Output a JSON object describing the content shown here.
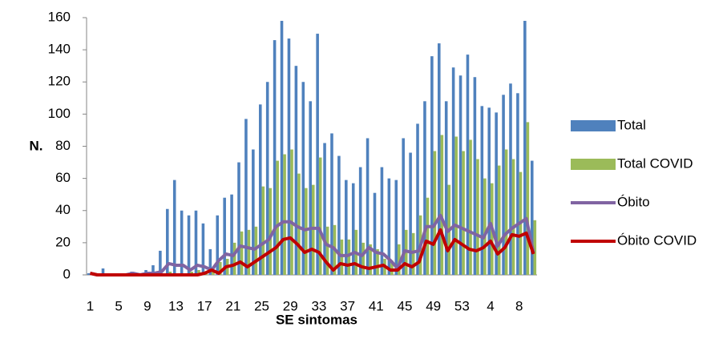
{
  "chart_data": {
    "type": "bar",
    "y_label": "N.",
    "x_label": "SE sintomas",
    "categories": [
      "1",
      null,
      null,
      null,
      "5",
      null,
      null,
      null,
      "9",
      null,
      null,
      null,
      "13",
      null,
      null,
      null,
      "17",
      null,
      null,
      null,
      "21",
      null,
      null,
      null,
      "25",
      null,
      null,
      null,
      "29",
      null,
      null,
      null,
      "33",
      null,
      null,
      null,
      "37",
      null,
      null,
      null,
      "41",
      null,
      null,
      null,
      "45",
      null,
      null,
      null,
      "49",
      null,
      null,
      null,
      "53",
      null,
      null,
      null,
      "4",
      null,
      null,
      null,
      "8",
      null,
      null
    ],
    "series": [
      {
        "name": "Total",
        "type": "bar",
        "color": "#4f81bd",
        "values": [
          1,
          0,
          4,
          0,
          0,
          0,
          2,
          1,
          3,
          6,
          15,
          41,
          59,
          40,
          37,
          40,
          32,
          16,
          37,
          48,
          50,
          70,
          97,
          78,
          106,
          120,
          146,
          158,
          147,
          130,
          120,
          108,
          150,
          82,
          88,
          74,
          59,
          57,
          67,
          85,
          51,
          67,
          60,
          59,
          85,
          76,
          94,
          108,
          136,
          144,
          108,
          129,
          124,
          137,
          123,
          105,
          104,
          101,
          112,
          119,
          113,
          158,
          71
        ]
      },
      {
        "name": "Total COVID",
        "type": "bar",
        "color": "#9bbb59",
        "values": [
          0,
          0,
          0,
          0,
          0,
          0,
          0,
          0,
          0,
          0,
          1,
          2,
          1,
          1,
          2,
          3,
          2,
          5,
          8,
          10,
          20,
          27,
          28,
          30,
          55,
          54,
          71,
          75,
          78,
          63,
          54,
          56,
          73,
          30,
          31,
          22,
          22,
          28,
          20,
          19,
          16,
          10,
          9,
          19,
          28,
          26,
          37,
          48,
          77,
          87,
          56,
          86,
          77,
          84,
          72,
          60,
          57,
          68,
          78,
          72,
          64,
          95,
          34
        ]
      },
      {
        "name": "Óbito",
        "type": "line",
        "color": "#8064a2",
        "values": [
          1,
          0,
          0,
          0,
          0,
          0,
          1,
          0,
          1,
          1,
          2,
          7,
          6,
          6,
          3,
          6,
          5,
          3,
          9,
          13,
          12,
          18,
          17,
          16,
          19,
          22,
          30,
          33,
          33,
          30,
          28,
          29,
          29,
          19,
          17,
          12,
          12,
          14,
          12,
          17,
          14,
          13,
          9,
          4,
          15,
          14,
          15,
          30,
          30,
          37,
          27,
          31,
          29,
          27,
          25,
          23,
          32,
          18,
          25,
          29,
          32,
          35,
          14
        ]
      },
      {
        "name": "Óbito COVID",
        "type": "line",
        "color": "#c00000",
        "values": [
          1,
          0,
          0,
          0,
          0,
          0,
          0,
          0,
          0,
          0,
          0,
          0,
          0,
          0,
          0,
          0,
          1,
          3,
          1,
          5,
          6,
          8,
          5,
          8,
          11,
          14,
          17,
          22,
          23,
          19,
          14,
          16,
          14,
          8,
          3,
          7,
          6,
          7,
          5,
          4,
          5,
          6,
          3,
          3,
          7,
          5,
          8,
          21,
          19,
          28,
          15,
          22,
          19,
          16,
          15,
          17,
          21,
          13,
          17,
          25,
          24,
          26,
          13
        ]
      }
    ],
    "ylim": [
      0,
      160
    ],
    "yticks": [
      0,
      20,
      40,
      60,
      80,
      100,
      120,
      140,
      160
    ],
    "grid": false
  }
}
